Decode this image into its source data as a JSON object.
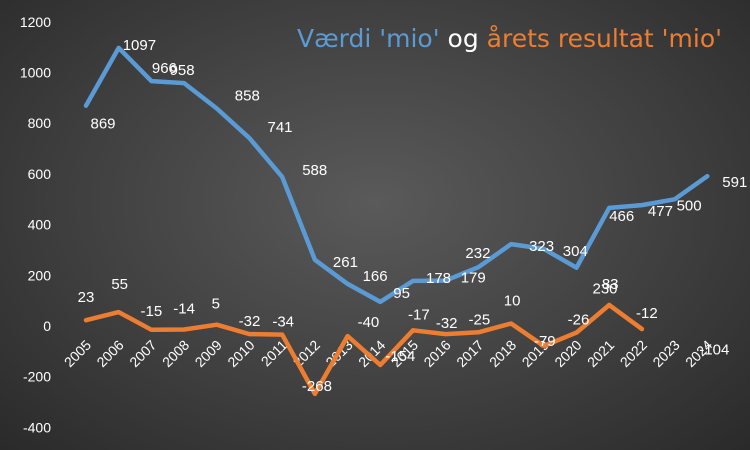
{
  "chart_data": {
    "type": "line",
    "title_parts": [
      {
        "text": "Værdi 'mio'",
        "color": "#5b9bd5"
      },
      {
        "text": " og ",
        "color": "#ffffff"
      },
      {
        "text": "årets resultat 'mio'",
        "color": "#ed7d31"
      }
    ],
    "x": [
      "2005",
      "2006",
      "2007",
      "2008",
      "2009",
      "2010",
      "2011",
      "2012",
      "2013",
      "2014",
      "2015",
      "2016",
      "2017",
      "2018",
      "2019",
      "2020",
      "2021",
      "2022",
      "2023",
      "2024"
    ],
    "ylim": [
      -400,
      1200
    ],
    "yticks": [
      "1200",
      "1000",
      "800",
      "600",
      "400",
      "200",
      "0",
      "-200",
      "-400"
    ],
    "grid": false,
    "series": [
      {
        "color": "#5b9bd5",
        "values": [
          869,
          1097,
          966,
          958,
          858,
          741,
          588,
          261,
          166,
          95,
          178,
          179,
          232,
          323,
          304,
          230,
          466,
          477,
          500,
          591
        ],
        "line_values": [
          869,
          1097,
          966,
          958,
          858,
          741,
          588,
          261,
          166,
          95,
          178,
          179,
          232,
          323,
          304,
          230,
          466,
          477,
          500,
          591
        ],
        "labels": [
          "869",
          "1097",
          "966",
          "958",
          "858",
          "741",
          "588",
          "261",
          "166",
          "95",
          "178",
          "179",
          "232",
          "323",
          "304",
          "230",
          "466",
          "477",
          "500",
          "591"
        ]
      },
      {
        "color": "#ed7d31",
        "values": [
          23,
          55,
          -15,
          -14,
          5,
          -32,
          -34,
          -268,
          -40,
          -154,
          -17,
          -32,
          -25,
          10,
          -79,
          -26,
          83,
          -12,
          null,
          -104
        ],
        "line_values": [
          23,
          55,
          -15,
          -14,
          5,
          -32,
          -34,
          -268,
          -40,
          -154,
          -17,
          -32,
          -25,
          10,
          -79,
          -26,
          83,
          -12,
          null,
          null
        ],
        "labels": [
          "23",
          "55",
          "-15",
          "-14",
          "5",
          "-32",
          "-34",
          "-268",
          "-40",
          "-154",
          "-17",
          "-32",
          "-25",
          "10",
          "-79",
          "-26",
          "83",
          "-12",
          "",
          "-104"
        ]
      }
    ]
  }
}
